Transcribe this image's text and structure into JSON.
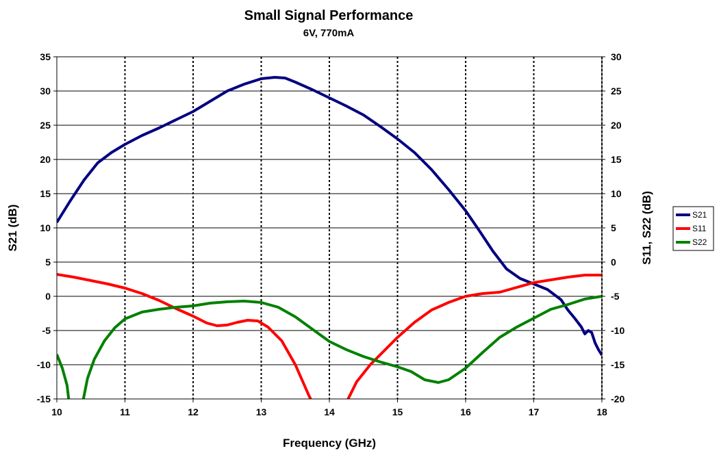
{
  "chart_data": {
    "type": "line",
    "title": "Small Signal Performance",
    "subtitle": "6V, 770mA",
    "xlabel": "Frequency (GHz)",
    "ylabel_left": "S21 (dB)",
    "ylabel_right": "S11, S22 (dB)",
    "xlim": [
      10,
      18
    ],
    "ylim_left": [
      -15,
      35
    ],
    "ylim_right": [
      -20,
      30
    ],
    "x_ticks": [
      "10",
      "11",
      "12",
      "13",
      "14",
      "15",
      "16",
      "17",
      "18"
    ],
    "y_left_ticks": [
      "-15",
      "-10",
      "-5",
      "0",
      "5",
      "10",
      "15",
      "20",
      "25",
      "30",
      "35"
    ],
    "y_right_ticks": [
      "-20",
      "-15",
      "-10",
      "-5",
      "0",
      "5",
      "10",
      "15",
      "20",
      "25",
      "30"
    ],
    "grid": {
      "horizontal": "solid",
      "vertical": "dotted"
    },
    "legend_position": "right",
    "series": [
      {
        "name": "S21",
        "axis": "left",
        "color": "#000080",
        "points": [
          [
            10,
            10.8
          ],
          [
            10.2,
            14
          ],
          [
            10.4,
            17
          ],
          [
            10.6,
            19.5
          ],
          [
            10.8,
            21
          ],
          [
            11,
            22.2
          ],
          [
            11.25,
            23.5
          ],
          [
            11.5,
            24.6
          ],
          [
            11.75,
            25.8
          ],
          [
            12,
            27
          ],
          [
            12.25,
            28.5
          ],
          [
            12.5,
            30
          ],
          [
            12.75,
            31
          ],
          [
            13,
            31.8
          ],
          [
            13.2,
            32
          ],
          [
            13.35,
            31.9
          ],
          [
            13.5,
            31.3
          ],
          [
            13.75,
            30.2
          ],
          [
            14,
            29
          ],
          [
            14.25,
            27.8
          ],
          [
            14.5,
            26.5
          ],
          [
            14.75,
            24.8
          ],
          [
            15,
            23
          ],
          [
            15.25,
            21
          ],
          [
            15.5,
            18.5
          ],
          [
            15.75,
            15.6
          ],
          [
            16,
            12.5
          ],
          [
            16.2,
            9.6
          ],
          [
            16.4,
            6.6
          ],
          [
            16.6,
            4
          ],
          [
            16.8,
            2.6
          ],
          [
            17,
            1.8
          ],
          [
            17.2,
            1
          ],
          [
            17.4,
            -0.5
          ],
          [
            17.5,
            -2
          ],
          [
            17.6,
            -3.2
          ],
          [
            17.7,
            -4.5
          ],
          [
            17.75,
            -5.5
          ],
          [
            17.8,
            -5
          ],
          [
            17.85,
            -5.3
          ],
          [
            17.9,
            -6.8
          ],
          [
            17.95,
            -7.8
          ],
          [
            18,
            -8.6
          ]
        ]
      },
      {
        "name": "S11",
        "axis": "right",
        "color": "#ff0000",
        "points": [
          [
            10,
            -1.8
          ],
          [
            10.25,
            -2.2
          ],
          [
            10.5,
            -2.7
          ],
          [
            10.75,
            -3.2
          ],
          [
            11,
            -3.8
          ],
          [
            11.25,
            -4.6
          ],
          [
            11.5,
            -5.6
          ],
          [
            11.75,
            -6.8
          ],
          [
            12,
            -7.9
          ],
          [
            12.2,
            -8.9
          ],
          [
            12.35,
            -9.3
          ],
          [
            12.5,
            -9.2
          ],
          [
            12.65,
            -8.8
          ],
          [
            12.8,
            -8.5
          ],
          [
            12.95,
            -8.6
          ],
          [
            13.1,
            -9.5
          ],
          [
            13.3,
            -11.5
          ],
          [
            13.5,
            -15
          ],
          [
            13.7,
            -19.5
          ],
          [
            13.75,
            -20.5
          ]
        ]
      },
      {
        "name": "S11",
        "axis": "right",
        "color": "#ff0000",
        "points": [
          [
            14.25,
            -20.5
          ],
          [
            14.4,
            -17.5
          ],
          [
            14.6,
            -15
          ],
          [
            14.8,
            -13
          ],
          [
            15,
            -11
          ],
          [
            15.25,
            -8.8
          ],
          [
            15.5,
            -7
          ],
          [
            15.75,
            -5.9
          ],
          [
            16,
            -5
          ],
          [
            16.25,
            -4.6
          ],
          [
            16.5,
            -4.4
          ],
          [
            16.75,
            -3.7
          ],
          [
            17,
            -3
          ],
          [
            17.25,
            -2.6
          ],
          [
            17.5,
            -2.2
          ],
          [
            17.75,
            -1.9
          ],
          [
            18,
            -1.9
          ]
        ]
      },
      {
        "name": "S22",
        "axis": "right",
        "color": "#008000",
        "points": [
          [
            10,
            -13.5
          ],
          [
            10.08,
            -15.5
          ],
          [
            10.15,
            -18
          ],
          [
            10.18,
            -20.5
          ]
        ]
      },
      {
        "name": "S22",
        "axis": "right",
        "color": "#008000",
        "points": [
          [
            10.38,
            -20.5
          ],
          [
            10.45,
            -17
          ],
          [
            10.55,
            -14.2
          ],
          [
            10.7,
            -11.5
          ],
          [
            10.85,
            -9.6
          ],
          [
            11,
            -8.3
          ],
          [
            11.25,
            -7.3
          ],
          [
            11.5,
            -6.9
          ],
          [
            11.75,
            -6.6
          ],
          [
            12,
            -6.4
          ],
          [
            12.25,
            -6
          ],
          [
            12.5,
            -5.8
          ],
          [
            12.75,
            -5.7
          ],
          [
            13,
            -5.9
          ],
          [
            13.25,
            -6.6
          ],
          [
            13.5,
            -8
          ],
          [
            13.75,
            -9.8
          ],
          [
            14,
            -11.6
          ],
          [
            14.25,
            -12.8
          ],
          [
            14.5,
            -13.8
          ],
          [
            14.75,
            -14.6
          ],
          [
            15,
            -15.3
          ],
          [
            15.2,
            -16
          ],
          [
            15.4,
            -17.2
          ],
          [
            15.6,
            -17.6
          ],
          [
            15.75,
            -17.2
          ],
          [
            16,
            -15.5
          ],
          [
            16.25,
            -13.2
          ],
          [
            16.5,
            -11
          ],
          [
            16.75,
            -9.5
          ],
          [
            17,
            -8.2
          ],
          [
            17.25,
            -6.9
          ],
          [
            17.5,
            -6.2
          ],
          [
            17.75,
            -5.4
          ],
          [
            18,
            -5
          ]
        ]
      }
    ],
    "legend": [
      {
        "name": "S21",
        "color": "#000080"
      },
      {
        "name": "S11",
        "color": "#ff0000"
      },
      {
        "name": "S22",
        "color": "#008000"
      }
    ]
  }
}
